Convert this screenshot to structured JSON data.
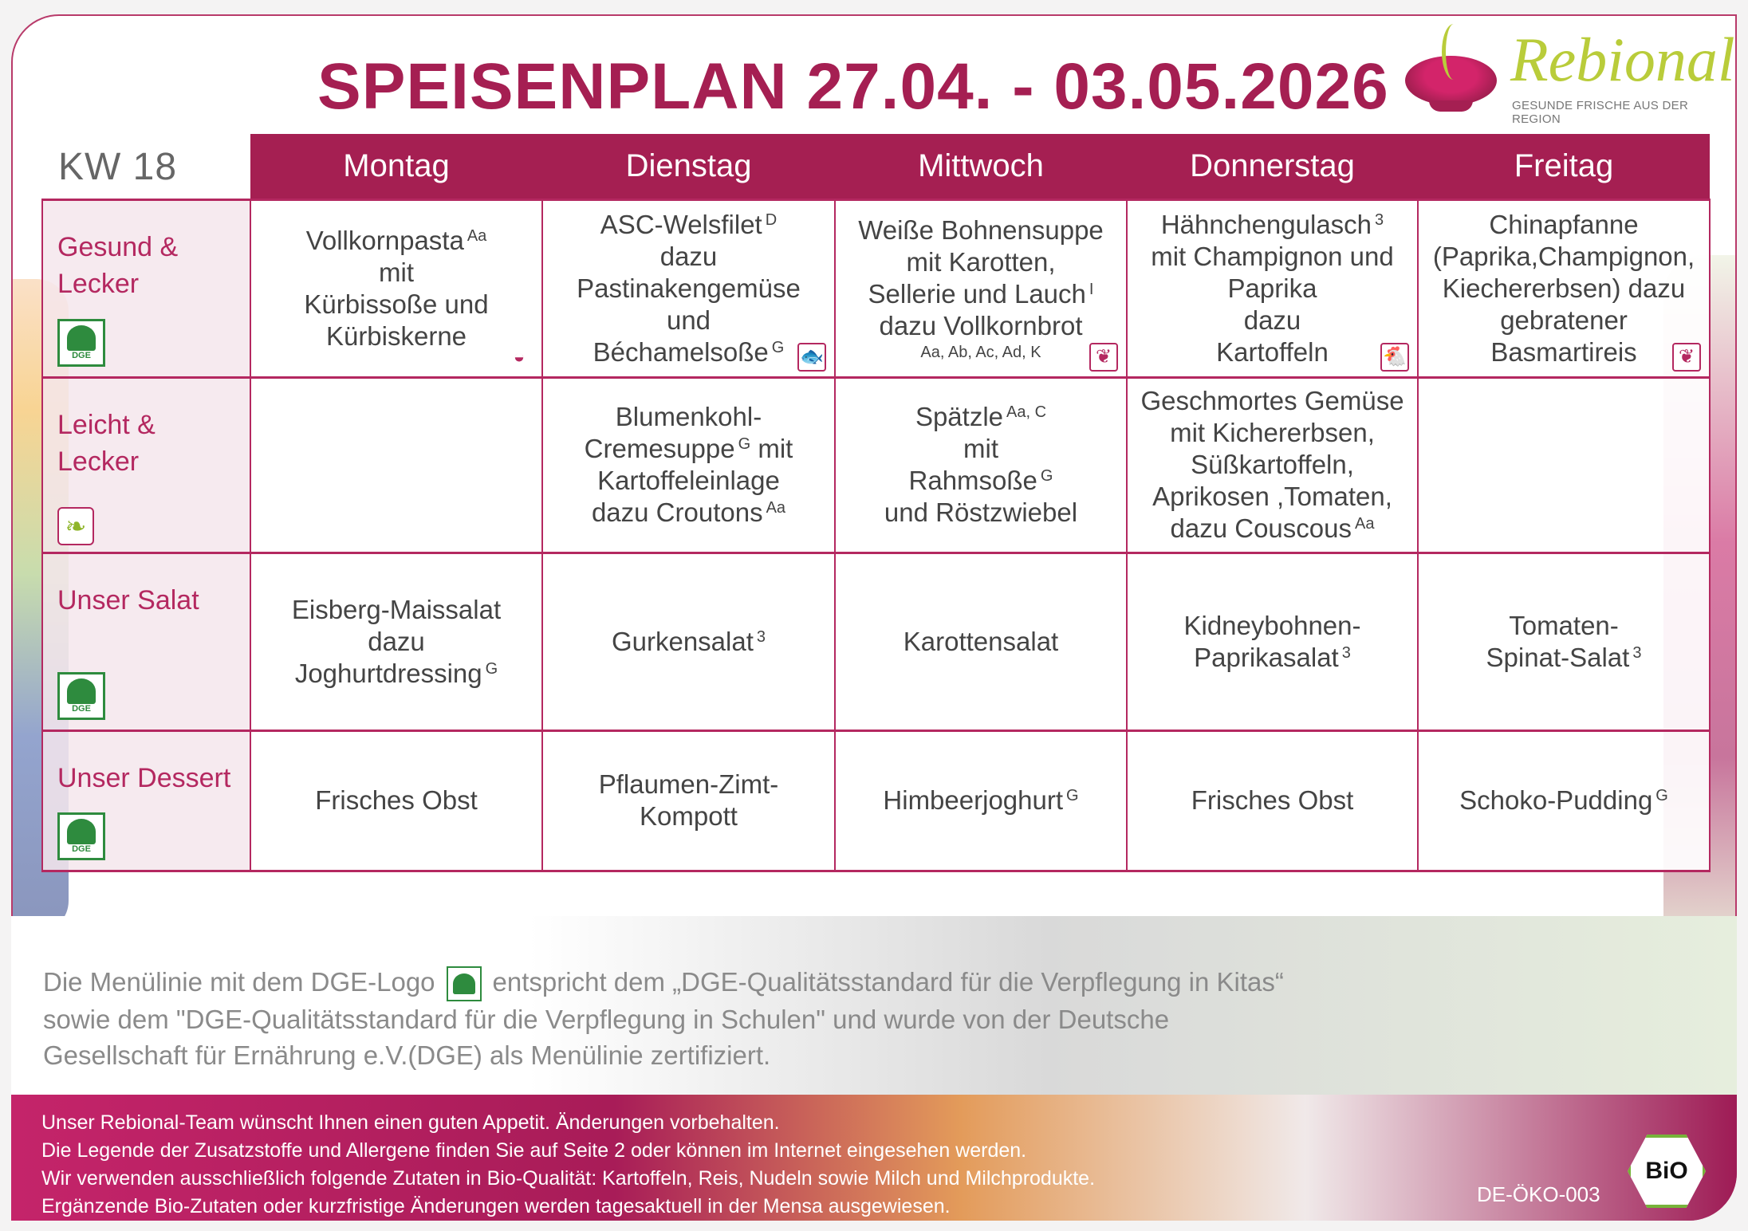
{
  "title": "SPEISENPLAN 27.04. - 03.05.2026",
  "logo": {
    "word": "Rebional",
    "tagline": "GESUNDE FRISCHE AUS DER REGION"
  },
  "week": "KW 18",
  "days": [
    "Montag",
    "Dienstag",
    "Mittwoch",
    "Donnerstag",
    "Freitag"
  ],
  "rows": [
    {
      "label": [
        "Gesund &",
        "Lecker"
      ],
      "badge": "dge",
      "cells": [
        {
          "icon": "bowl-icon",
          "lines": [
            {
              "t": "Vollkornpasta",
              "sup": "Aa"
            },
            {
              "t": "mit"
            },
            {
              "t": "Kürbissoße und"
            },
            {
              "t": "Kürbiskerne"
            }
          ]
        },
        {
          "icon": "fish-icon",
          "lines": [
            {
              "t": "ASC-Welsfilet",
              "sup": "D"
            },
            {
              "t": "dazu"
            },
            {
              "t": "Pastinakengemüse"
            },
            {
              "t": "und"
            },
            {
              "t": "Béchamelsoße",
              "sup": "G"
            }
          ]
        },
        {
          "icon": "sprout-icon",
          "lines": [
            {
              "t": "Weiße Bohnensuppe"
            },
            {
              "t": "mit Karotten,"
            },
            {
              "t": "Sellerie und Lauch",
              "sup": "I"
            },
            {
              "t": "dazu Vollkornbrot"
            },
            {
              "t": "Aa, Ab, Ac, Ad, K",
              "small": true
            }
          ]
        },
        {
          "icon": "chicken-icon",
          "lines": [
            {
              "t": "Hähnchengulasch",
              "sup": "3"
            },
            {
              "t": "mit Champignon und"
            },
            {
              "t": "Paprika"
            },
            {
              "t": "dazu"
            },
            {
              "t": "Kartoffeln"
            }
          ]
        },
        {
          "icon": "sprout-icon",
          "lines": [
            {
              "t": "Chinapfanne"
            },
            {
              "t": "(Paprika,Champignon,"
            },
            {
              "t": "Kiechererbsen) dazu"
            },
            {
              "t": "gebratener"
            },
            {
              "t": "Basmartireis"
            }
          ]
        }
      ]
    },
    {
      "label": [
        "Leicht &",
        "Lecker"
      ],
      "badge": "sprout",
      "cells": [
        {
          "lines": []
        },
        {
          "lines": [
            {
              "t": "Blumenkohl-"
            },
            {
              "t": "Cremesuppe",
              "sup": "G",
              "after": " mit"
            },
            {
              "t": "Kartoffeleinlage"
            },
            {
              "t": "dazu Croutons",
              "sup": "Aa"
            }
          ]
        },
        {
          "lines": [
            {
              "t": "Spätzle",
              "sup": "Aa, C"
            },
            {
              "t": "mit"
            },
            {
              "t": "Rahmsoße",
              "sup": "G"
            },
            {
              "t": "und Röstzwiebel"
            }
          ]
        },
        {
          "lines": [
            {
              "t": "Geschmortes Gemüse"
            },
            {
              "t": "mit Kichererbsen,"
            },
            {
              "t": "Süßkartoffeln,"
            },
            {
              "t": "Aprikosen ,Tomaten,"
            },
            {
              "t": "dazu Couscous",
              "sup": "Aa"
            }
          ]
        },
        {
          "lines": []
        }
      ]
    },
    {
      "label": [
        "Unser Salat"
      ],
      "badge": "dge",
      "cells": [
        {
          "lines": [
            {
              "t": "Eisberg-Maissalat"
            },
            {
              "t": "dazu"
            },
            {
              "t": "Joghurtdressing",
              "sup": "G"
            }
          ]
        },
        {
          "lines": [
            {
              "t": "Gurkensalat",
              "sup": "3"
            }
          ]
        },
        {
          "lines": [
            {
              "t": "Karottensalat"
            }
          ]
        },
        {
          "lines": [
            {
              "t": "Kidneybohnen-"
            },
            {
              "t": "Paprikasalat",
              "sup": "3"
            }
          ]
        },
        {
          "lines": [
            {
              "t": "Tomaten-"
            },
            {
              "t": "Spinat-Salat",
              "sup": "3"
            }
          ]
        }
      ]
    },
    {
      "label": [
        "Unser Dessert"
      ],
      "badge": "dge",
      "cells": [
        {
          "lines": [
            {
              "t": "Frisches Obst"
            }
          ]
        },
        {
          "lines": [
            {
              "t": "Pflaumen-Zimt-"
            },
            {
              "t": "Kompott"
            }
          ]
        },
        {
          "lines": [
            {
              "t": "Himbeerjoghurt",
              "sup": "G"
            }
          ]
        },
        {
          "lines": [
            {
              "t": "Frisches Obst"
            }
          ]
        },
        {
          "lines": [
            {
              "t": "Schoko-Pudding",
              "sup": "G"
            }
          ]
        }
      ]
    }
  ],
  "dge_badge_label": "DGE",
  "note": {
    "before_logo": "Die Menülinie mit dem DGE-Logo",
    "after_logo": "entspricht dem „DGE-Qualitätsstandard für die Verpflegung in Kitas“ sowie dem \"DGE-Qualitätsstandard für die Verpflegung in Schulen\" und wurde von der Deutsche Gesellschaft für Ernährung e.V.(DGE) als Menülinie zertifiziert."
  },
  "footer_lines": [
    "Unser Rebional-Team wünscht Ihnen einen guten Appetit. Änderungen vorbehalten.",
    "Die Legende der Zusatzstoffe und Allergene finden Sie auf Seite 2 oder können im Internet eingesehen werden.",
    "Wir verwenden ausschließlich folgende Zutaten in Bio-Qualität: Kartoffeln, Reis, Nudeln sowie Milch und Milchprodukte.",
    "Ergänzende Bio-Zutaten oder kurzfristige Änderungen werden tagesaktuell in der Mensa ausgewiesen."
  ],
  "bio_label": "BiO",
  "eco_code": "DE-ÖKO-003",
  "colors": {
    "brand": "#a51f52",
    "dge_green": "#2e8b3e",
    "logo_green": "#b9cc3a"
  }
}
